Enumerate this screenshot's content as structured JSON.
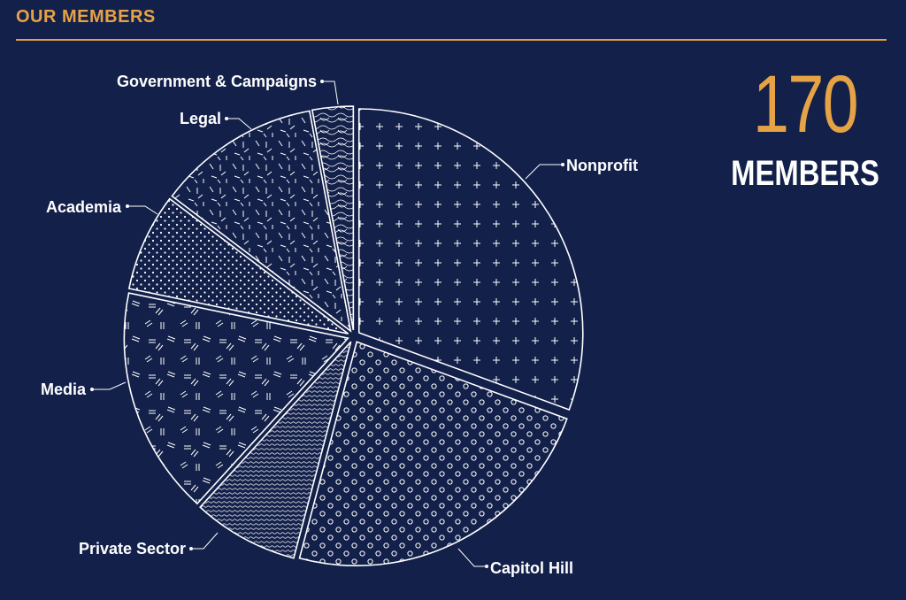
{
  "header": {
    "title": "OUR MEMBERS"
  },
  "stat": {
    "number": "170",
    "label": "MEMBERS"
  },
  "colors": {
    "background": "#13204a",
    "accent": "#e6a345",
    "line": "#ffffff"
  },
  "chart_data": {
    "type": "pie",
    "total": 170,
    "start": "12 o'clock",
    "direction": "clockwise",
    "slices": [
      {
        "label": "Nonprofit",
        "value": 52,
        "pattern": "plus"
      },
      {
        "label": "Capitol Hill",
        "value": 40,
        "pattern": "circles"
      },
      {
        "label": "Private Sector",
        "value": 13,
        "pattern": "fine-lines"
      },
      {
        "label": "Media",
        "value": 28,
        "pattern": "dashes"
      },
      {
        "label": "Academia",
        "value": 12,
        "pattern": "dots"
      },
      {
        "label": "Legal",
        "value": 20,
        "pattern": "ticks"
      },
      {
        "label": "Government & Campaigns",
        "value": 5,
        "pattern": "contour"
      }
    ]
  }
}
